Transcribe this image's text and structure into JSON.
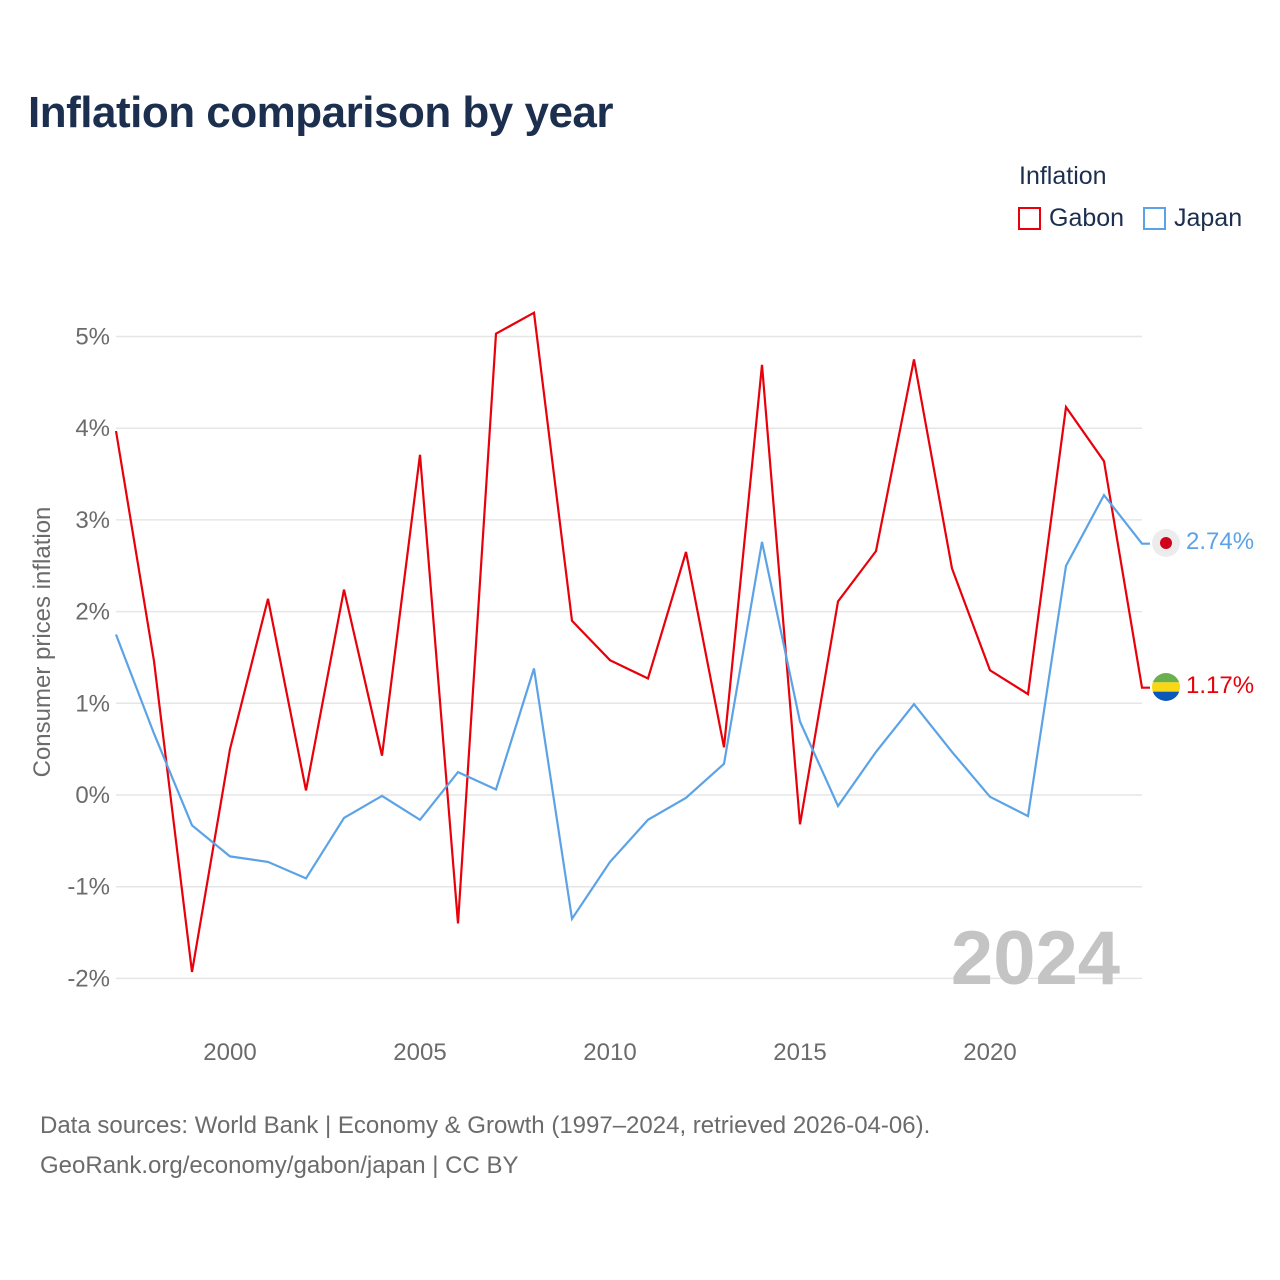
{
  "title": "Inflation comparison by year",
  "legend": {
    "title": "Inflation",
    "items": [
      {
        "label": "Gabon",
        "color": "#e8000b"
      },
      {
        "label": "Japan",
        "color": "#5ba3e6"
      }
    ]
  },
  "year_watermark": "2024",
  "source": {
    "line1": "Data sources: World Bank | Economy & Growth (1997–2024, retrieved 2026-04-06).",
    "line2": "GeoRank.org/economy/gabon/japan | CC BY"
  },
  "chart_data": {
    "type": "line",
    "title": "Inflation comparison by year",
    "xlabel": "",
    "ylabel": "Consumer prices inflation",
    "x": [
      1997,
      1998,
      1999,
      2000,
      2001,
      2002,
      2003,
      2004,
      2005,
      2006,
      2007,
      2008,
      2009,
      2010,
      2011,
      2012,
      2013,
      2014,
      2015,
      2016,
      2017,
      2018,
      2019,
      2020,
      2021,
      2022,
      2023,
      2024
    ],
    "xlim": [
      1997,
      2024
    ],
    "ylim": [
      -2.3,
      5.6
    ],
    "x_ticks": [
      2000,
      2005,
      2010,
      2015,
      2020
    ],
    "y_ticks": [
      -2,
      -1,
      0,
      1,
      2,
      3,
      4,
      5
    ],
    "y_tick_labels": [
      "-2%",
      "-1%",
      "0%",
      "1%",
      "2%",
      "3%",
      "4%",
      "5%"
    ],
    "series": [
      {
        "name": "Gabon",
        "color": "#e8000b",
        "values": [
          3.97,
          1.46,
          -1.93,
          0.5,
          2.14,
          0.05,
          2.24,
          0.43,
          3.71,
          -1.4,
          5.03,
          5.26,
          1.9,
          1.47,
          1.27,
          2.65,
          0.52,
          4.69,
          -0.32,
          2.11,
          2.66,
          4.75,
          2.47,
          1.36,
          1.1,
          4.23,
          3.64,
          1.17
        ],
        "end_label": "1.17%"
      },
      {
        "name": "Japan",
        "color": "#5ba3e6",
        "values": [
          1.75,
          0.67,
          -0.33,
          -0.67,
          -0.73,
          -0.91,
          -0.25,
          -0.01,
          -0.27,
          0.25,
          0.06,
          1.38,
          -1.35,
          -0.73,
          -0.27,
          -0.03,
          0.34,
          2.76,
          0.8,
          -0.12,
          0.47,
          0.99,
          0.47,
          -0.02,
          -0.23,
          2.5,
          3.27,
          2.74
        ],
        "end_label": "2.74%"
      }
    ]
  }
}
